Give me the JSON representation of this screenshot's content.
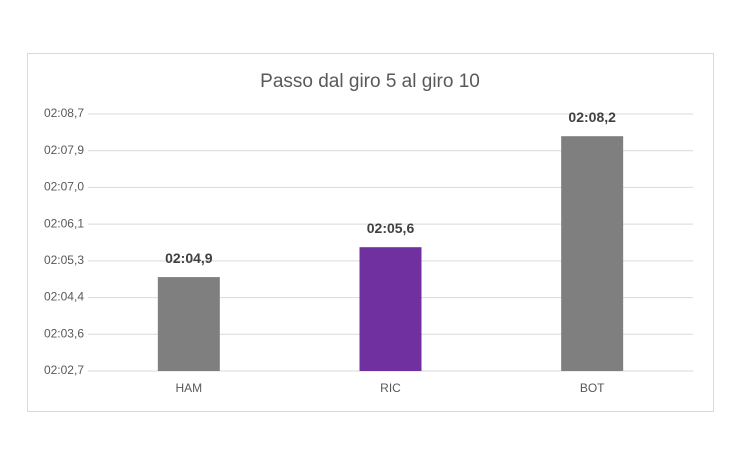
{
  "chart_data": {
    "type": "bar",
    "title": "Passo dal giro 5 al giro 10",
    "categories": [
      "HAM",
      "RIC",
      "BOT"
    ],
    "values": [
      124.9,
      125.6,
      128.2
    ],
    "value_labels": [
      "02:04,9",
      "02:05,6",
      "02:08,2"
    ],
    "colors": [
      "#7f7f7f",
      "#7030a0",
      "#7f7f7f"
    ],
    "ylim": [
      122.7,
      128.72
    ],
    "yticks": [
      {
        "value": 122.7,
        "label": "02:02,7"
      },
      {
        "value": 123.56,
        "label": "02:03,6"
      },
      {
        "value": 124.42,
        "label": "02:04,4"
      },
      {
        "value": 125.28,
        "label": "02:05,3"
      },
      {
        "value": 126.14,
        "label": "02:06,1"
      },
      {
        "value": 127.0,
        "label": "02:07,0"
      },
      {
        "value": 127.86,
        "label": "02:07,9"
      },
      {
        "value": 128.72,
        "label": "02:08,7"
      }
    ],
    "grid": true
  }
}
